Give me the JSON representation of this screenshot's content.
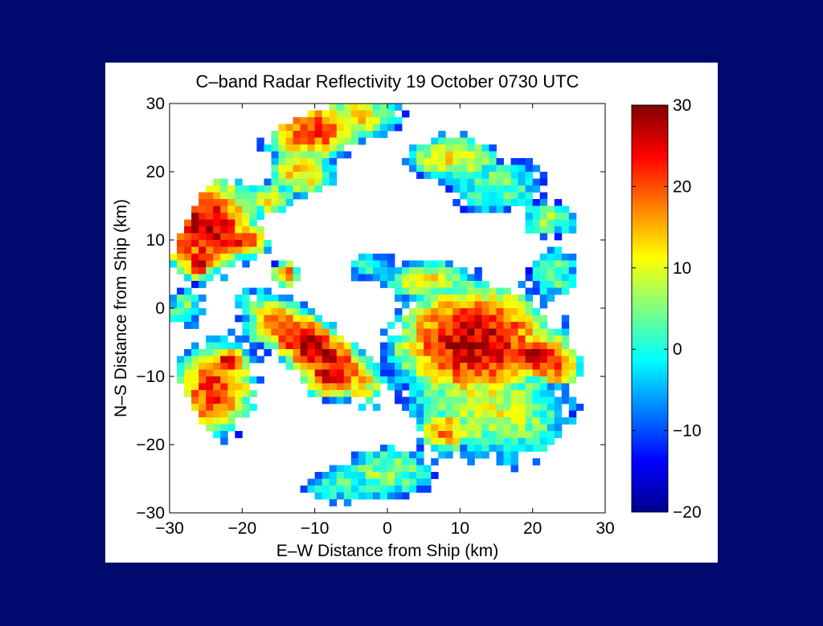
{
  "chart_data": {
    "type": "heatmap",
    "title": "C–band Radar Reflectivity 19 October 0730 UTC",
    "xlabel": "E–W Distance from Ship (km)",
    "ylabel": "N–S Distance from Ship (km)",
    "xlim": [
      -30,
      30
    ],
    "ylim": [
      -30,
      30
    ],
    "x_ticks": [
      "−30",
      "−20",
      "−10",
      "0",
      "10",
      "20",
      "30"
    ],
    "y_ticks": [
      "30",
      "20",
      "10",
      "0",
      "−10",
      "−20",
      "−30"
    ],
    "colorbar": {
      "range": [
        -20,
        30
      ],
      "ticks": [
        "30",
        "20",
        "10",
        "0",
        "−10",
        "−20"
      ],
      "colormap": "jet"
    },
    "grid": false,
    "units": "dBZ-like reflectivity",
    "echo_cells": [
      {
        "x": -25,
        "y": 12,
        "rx": 5.5,
        "ry": 6.0,
        "peak": 27,
        "angle": -30
      },
      {
        "x": -26,
        "y": 7,
        "rx": 2.0,
        "ry": 2.5,
        "peak": 26,
        "angle": 0
      },
      {
        "x": -20,
        "y": 10,
        "rx": 3.0,
        "ry": 2.0,
        "peak": 24,
        "angle": 0
      },
      {
        "x": -10,
        "y": 26,
        "rx": 5.5,
        "ry": 3.5,
        "peak": 22,
        "angle": 10
      },
      {
        "x": -12,
        "y": 20,
        "rx": 3.5,
        "ry": 3.0,
        "peak": 14,
        "angle": 0
      },
      {
        "x": -16,
        "y": 16,
        "rx": 2.5,
        "ry": 2.0,
        "peak": 12,
        "angle": 0
      },
      {
        "x": -4,
        "y": 28,
        "rx": 4.5,
        "ry": 2.5,
        "peak": 12,
        "angle": 0
      },
      {
        "x": -10,
        "y": -6,
        "rx": 9.5,
        "ry": 3.2,
        "peak": 27,
        "angle": -38
      },
      {
        "x": -8,
        "y": -10,
        "rx": 3.0,
        "ry": 2.5,
        "peak": 26,
        "angle": 0
      },
      {
        "x": -24,
        "y": -12,
        "rx": 4.5,
        "ry": 6.0,
        "peak": 22,
        "angle": -20
      },
      {
        "x": -22,
        "y": -8,
        "rx": 2.0,
        "ry": 2.0,
        "peak": 25,
        "angle": 0
      },
      {
        "x": 12,
        "y": -5,
        "rx": 9.0,
        "ry": 7.0,
        "peak": 27,
        "angle": 0
      },
      {
        "x": 20,
        "y": -7,
        "rx": 5.0,
        "ry": 3.0,
        "peak": 26,
        "angle": 0
      },
      {
        "x": 14,
        "y": -14,
        "rx": 9.0,
        "ry": 6.0,
        "peak": 10,
        "angle": -20
      },
      {
        "x": 23,
        "y": -9,
        "rx": 3.0,
        "ry": 2.0,
        "peak": 20,
        "angle": 0
      },
      {
        "x": 8,
        "y": -18,
        "rx": 3.0,
        "ry": 2.5,
        "peak": 18,
        "angle": 0
      },
      {
        "x": 6,
        "y": 4,
        "rx": 5.0,
        "ry": 2.2,
        "peak": 12,
        "angle": 0
      },
      {
        "x": 9,
        "y": 22,
        "rx": 5.0,
        "ry": 2.5,
        "peak": 12,
        "angle": 0
      },
      {
        "x": 15,
        "y": 18,
        "rx": 5.0,
        "ry": 3.0,
        "peak": 4,
        "angle": 0
      },
      {
        "x": 22,
        "y": 13,
        "rx": 3.0,
        "ry": 2.0,
        "peak": 6,
        "angle": 0
      },
      {
        "x": 23,
        "y": 5,
        "rx": 2.5,
        "ry": 3.0,
        "peak": 4,
        "angle": 0
      },
      {
        "x": 0,
        "y": -24,
        "rx": 5.0,
        "ry": 3.0,
        "peak": 6,
        "angle": 0
      },
      {
        "x": -6,
        "y": -26,
        "rx": 4.0,
        "ry": 2.0,
        "peak": 2,
        "angle": 0
      },
      {
        "x": -17,
        "y": -3,
        "rx": 3.0,
        "ry": 2.0,
        "peak": 6,
        "angle": 0
      },
      {
        "x": -28,
        "y": 0,
        "rx": 2.0,
        "ry": 2.0,
        "peak": 4,
        "angle": 0
      },
      {
        "x": -14,
        "y": 5,
        "rx": 1.5,
        "ry": 1.5,
        "peak": 20,
        "angle": 0
      },
      {
        "x": -2,
        "y": 6,
        "rx": 2.5,
        "ry": 1.5,
        "peak": 2,
        "angle": 0
      },
      {
        "x": 3,
        "y": -8,
        "rx": 3.0,
        "ry": 3.0,
        "peak": -4,
        "angle": 0
      }
    ]
  }
}
